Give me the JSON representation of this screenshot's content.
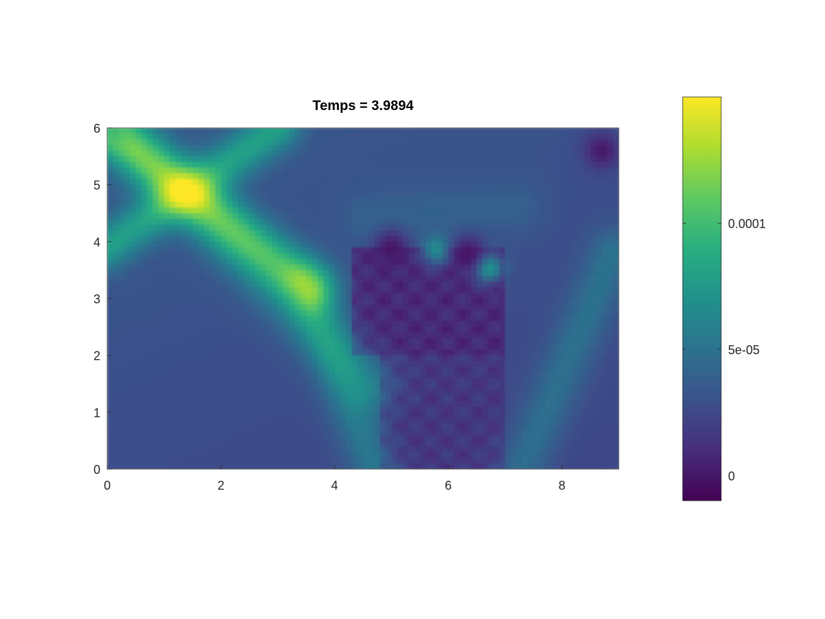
{
  "chart_data": {
    "type": "heatmap",
    "title": "Temps = 3.9894",
    "xlabel": "",
    "ylabel": "",
    "xlim": [
      0,
      9
    ],
    "ylim": [
      0,
      6
    ],
    "x_ticks": [
      0,
      2,
      4,
      6,
      8
    ],
    "x_tick_labels": [
      "0",
      "2",
      "4",
      "6",
      "8"
    ],
    "y_ticks": [
      0,
      1,
      2,
      3,
      4,
      5,
      6
    ],
    "y_tick_labels": [
      "0",
      "1",
      "2",
      "3",
      "4",
      "5",
      "6"
    ],
    "grid": false,
    "colormap": "viridis",
    "colorbar": {
      "range": [
        -1e-05,
        0.00015
      ],
      "ticks": [
        0,
        5e-05,
        0.0001
      ],
      "tick_labels": [
        "0",
        "5e-05",
        "0.0001"
      ],
      "placement": "right"
    },
    "field": {
      "background": 2.8e-05,
      "bands": [
        {
          "from": [
            0,
            5.95
          ],
          "to": [
            3.6,
            3.2
          ],
          "peak": 9.5e-05,
          "width": 0.32
        },
        {
          "from": [
            0,
            3.9
          ],
          "to": [
            3.0,
            6.0
          ],
          "peak": 8.5e-05,
          "width": 0.28
        },
        {
          "from": [
            0.2,
            6.0
          ],
          "to": [
            4.6,
            1.5
          ],
          "peak": 6e-05,
          "width": 0.35
        },
        {
          "from": [
            3.5,
            3.3
          ],
          "to": [
            4.7,
            0.0
          ],
          "peak": 6e-05,
          "width": 0.3
        },
        {
          "from": [
            7.3,
            0.0
          ],
          "to": [
            8.9,
            3.8
          ],
          "peak": 5.5e-05,
          "width": 0.3
        },
        {
          "from": [
            4.6,
            4.4
          ],
          "to": [
            7.2,
            4.6
          ],
          "peak": 4e-05,
          "width": 0.35
        }
      ],
      "low_regions": [
        {
          "x": [
            4.3,
            7.0
          ],
          "y": [
            2.0,
            3.9
          ],
          "value": 5e-06
        },
        {
          "x": [
            4.8,
            7.0
          ],
          "y": [
            0.0,
            2.0
          ],
          "value": 1.2e-05
        }
      ],
      "hot_spots": [
        {
          "x": 5.8,
          "y": 3.85,
          "value": 7e-05
        },
        {
          "x": 6.7,
          "y": 3.55,
          "value": 8e-05
        },
        {
          "x": 0.1,
          "y": 5.95,
          "value": 0.0001
        }
      ],
      "cold_spots": [
        {
          "x": 8.7,
          "y": 5.6,
          "value": 0.0
        },
        {
          "x": 5.0,
          "y": 3.9,
          "value": 0.0
        },
        {
          "x": 6.35,
          "y": 3.8,
          "value": 0.0
        }
      ]
    }
  }
}
